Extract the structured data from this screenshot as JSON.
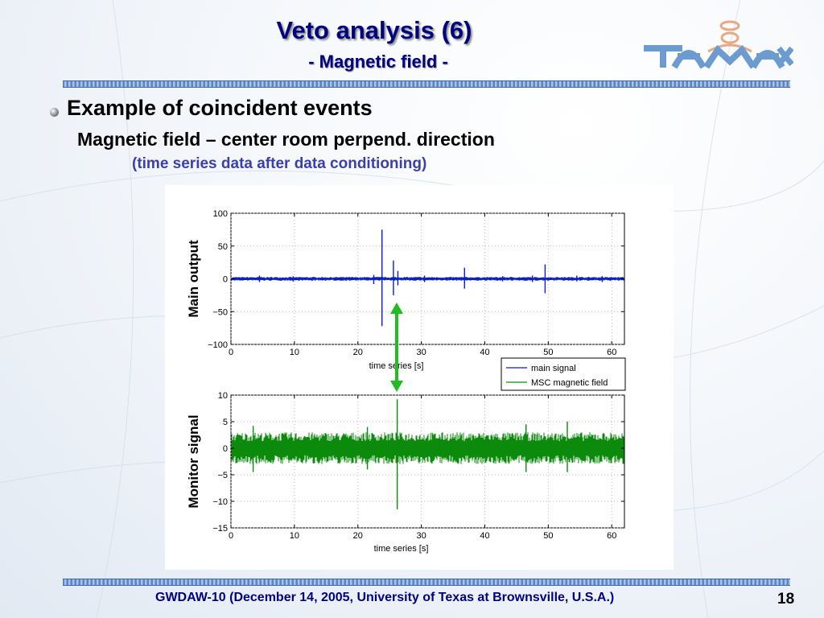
{
  "slide": {
    "title": "Veto analysis (6)",
    "subtitle": "- Magnetic field -",
    "bullet_heading": "Example of coincident events",
    "line2": "Magnetic field – center room perpend. direction",
    "line3": "(time series data after data conditioning)",
    "footer": "GWDAW-10 (December 14, 2005, University of Texas at Brownsville, U.S.A.)",
    "page_number": "18",
    "logo_icon": "tama-logo"
  },
  "colors": {
    "title": "#000080",
    "main_signal": "#0a1fbf",
    "monitor_signal": "#0c8a0c",
    "arrow": "#22bb22"
  },
  "chart_data": [
    {
      "type": "line",
      "side_label": "Main output",
      "xlabel": "time series [s]",
      "xlim": [
        0,
        62
      ],
      "ylim": [
        -100,
        100
      ],
      "x_ticks": [
        0,
        10,
        20,
        30,
        40,
        50,
        60
      ],
      "y_ticks": [
        100,
        50,
        0,
        -50,
        -100
      ],
      "y_tick_labels": [
        "100",
        "50",
        "0",
        "−50",
        "−100"
      ],
      "grid": true,
      "series": [
        {
          "name": "main signal",
          "noise_band": [
            -3,
            3
          ],
          "spikes": [
            {
              "x": 22.5,
              "min": -8,
              "max": 6
            },
            {
              "x": 23.8,
              "min": -72,
              "max": 75
            },
            {
              "x": 25.6,
              "min": -25,
              "max": 28
            },
            {
              "x": 26.3,
              "min": -10,
              "max": 12
            },
            {
              "x": 36.8,
              "min": -15,
              "max": 17
            },
            {
              "x": 49.5,
              "min": -22,
              "max": 22
            },
            {
              "x": 4.5,
              "min": -5,
              "max": 5
            },
            {
              "x": 9.8,
              "min": -4,
              "max": 4
            },
            {
              "x": 30.5,
              "min": -5,
              "max": 5
            },
            {
              "x": 42.8,
              "min": -4,
              "max": 4
            },
            {
              "x": 47.5,
              "min": -5,
              "max": 5
            },
            {
              "x": 54.5,
              "min": -4,
              "max": 5
            },
            {
              "x": 58.5,
              "min": -5,
              "max": 4
            }
          ]
        }
      ]
    },
    {
      "type": "line",
      "side_label": "Monitor signal",
      "xlabel": "time series [s]",
      "xlim": [
        0,
        62
      ],
      "ylim": [
        -15,
        10
      ],
      "x_ticks": [
        0,
        10,
        20,
        30,
        40,
        50,
        60
      ],
      "y_ticks": [
        10,
        5,
        0,
        -5,
        -10,
        -15
      ],
      "y_tick_labels": [
        "10",
        "5",
        "0",
        "−5",
        "−10",
        "−15"
      ],
      "grid": true,
      "series": [
        {
          "name": "MSC magnetic field",
          "noise_band": [
            -3,
            3
          ],
          "spikes": [
            {
              "x": 26.2,
              "min": -11.5,
              "max": 9.2
            },
            {
              "x": 3.5,
              "min": -4.5,
              "max": 4.2
            },
            {
              "x": 21.5,
              "min": -4,
              "max": 4
            },
            {
              "x": 46.5,
              "min": -4.5,
              "max": 4.5
            },
            {
              "x": 53.0,
              "min": -4.5,
              "max": 5.0
            }
          ]
        }
      ]
    }
  ],
  "legend": {
    "entries": [
      "main signal",
      "MSC magnetic field"
    ],
    "placement": "between-panels-right"
  }
}
